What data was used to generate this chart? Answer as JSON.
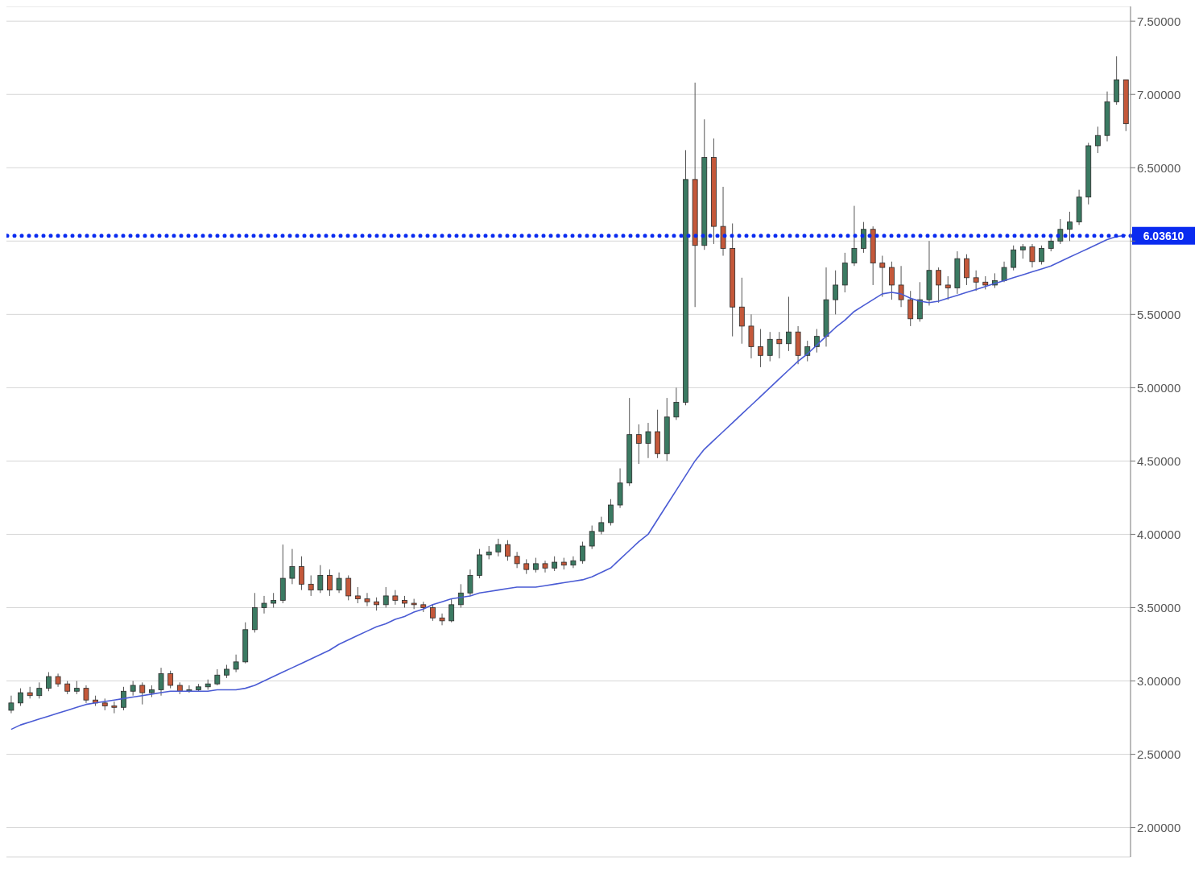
{
  "chart_data": {
    "type": "candlestick",
    "categories": [
      null,
      null,
      null,
      null,
      null,
      null,
      null,
      null,
      null,
      null,
      null,
      null,
      null,
      null,
      null,
      null,
      null,
      null,
      null,
      null,
      null,
      null,
      null,
      null,
      null,
      null,
      null,
      null,
      null,
      null,
      null,
      null,
      null,
      null,
      null,
      null,
      null,
      null,
      null,
      null,
      null,
      null,
      null,
      null,
      null,
      null,
      null,
      null,
      null,
      null,
      null,
      null,
      null,
      null,
      null,
      null,
      null,
      null,
      null,
      null,
      null,
      null,
      null,
      null,
      null,
      null,
      null,
      null,
      null,
      null,
      null,
      null,
      null,
      null,
      null,
      null,
      null,
      null,
      null,
      null,
      null,
      null,
      null,
      null,
      null,
      null,
      null,
      null,
      null,
      null,
      null,
      null,
      null,
      null,
      null,
      null,
      null,
      null,
      null,
      null,
      null,
      null,
      null,
      null,
      null,
      null,
      null,
      null,
      null,
      null,
      null,
      null,
      null,
      null,
      null,
      null,
      null,
      null,
      null,
      null
    ],
    "series": [
      {
        "colors": [
          "#3b7a62",
          "#3b7a62",
          "#c4583a",
          "#3b7a62",
          "#3b7a62",
          "#c4583a",
          "#c4583a",
          "#3b7a62",
          "#c4583a",
          "#c4583a",
          "#c4583a",
          "#c4583a",
          "#3b7a62",
          "#3b7a62",
          "#c4583a",
          "#3b7a62",
          "#3b7a62",
          "#c4583a",
          "#c4583a",
          "#3b7a62",
          "#3b7a62",
          "#3b7a62",
          "#3b7a62",
          "#3b7a62",
          "#3b7a62",
          "#3b7a62",
          "#3b7a62",
          "#3b7a62",
          "#3b7a62",
          "#3b7a62",
          "#3b7a62",
          "#c4583a",
          "#c4583a",
          "#3b7a62",
          "#c4583a",
          "#3b7a62",
          "#c4583a",
          "#c4583a",
          "#c4583a",
          "#c4583a",
          "#3b7a62",
          "#c4583a",
          "#c4583a",
          "#c4583a",
          "#c4583a",
          "#c4583a",
          "#c4583a",
          "#3b7a62",
          "#3b7a62",
          "#3b7a62",
          "#3b7a62",
          "#3b7a62",
          "#3b7a62",
          "#c4583a",
          "#c4583a",
          "#c4583a",
          "#3b7a62",
          "#c4583a",
          "#3b7a62",
          "#c4583a",
          "#3b7a62",
          "#3b7a62",
          "#3b7a62",
          "#3b7a62",
          "#3b7a62",
          "#3b7a62",
          "#3b7a62",
          "#c4583a",
          "#3b7a62",
          "#c4583a",
          "#3b7a62",
          "#3b7a62",
          "#3b7a62",
          "#c4583a",
          "#3b7a62",
          "#c4583a",
          "#c4583a",
          "#c4583a",
          "#c4583a",
          "#c4583a",
          "#c4583a",
          "#3b7a62",
          "#c4583a",
          "#3b7a62",
          "#c4583a",
          "#3b7a62",
          "#3b7a62",
          "#3b7a62",
          "#3b7a62",
          "#3b7a62",
          "#3b7a62",
          "#3b7a62",
          "#c4583a",
          "#c4583a",
          "#c4583a",
          "#c4583a",
          "#c4583a",
          "#3b7a62",
          "#3b7a62",
          "#c4583a",
          "#c4583a",
          "#3b7a62",
          "#c4583a",
          "#c4583a",
          "#c4583a",
          "#3b7a62",
          "#3b7a62",
          "#3b7a62",
          "#3b7a62",
          "#c4583a",
          "#3b7a62",
          "#3b7a62",
          "#3b7a62",
          "#3b7a62",
          "#3b7a62",
          "#3b7a62",
          "#3b7a62",
          "#3b7a62",
          "#3b7a62",
          "#c4583a"
        ],
        "ohlc": [
          [
            2.8,
            2.9,
            2.78,
            2.85
          ],
          [
            2.85,
            2.95,
            2.83,
            2.92
          ],
          [
            2.92,
            2.96,
            2.88,
            2.9
          ],
          [
            2.9,
            2.99,
            2.88,
            2.95
          ],
          [
            2.95,
            3.06,
            2.93,
            3.03
          ],
          [
            3.03,
            3.05,
            2.96,
            2.98
          ],
          [
            2.98,
            3.0,
            2.91,
            2.93
          ],
          [
            2.93,
            3.0,
            2.91,
            2.95
          ],
          [
            2.95,
            2.97,
            2.85,
            2.87
          ],
          [
            2.87,
            2.9,
            2.83,
            2.85
          ],
          [
            2.85,
            2.88,
            2.8,
            2.83
          ],
          [
            2.83,
            2.86,
            2.78,
            2.82
          ],
          [
            2.82,
            2.96,
            2.8,
            2.93
          ],
          [
            2.93,
            3.0,
            2.9,
            2.97
          ],
          [
            2.97,
            2.99,
            2.84,
            2.92
          ],
          [
            2.92,
            2.97,
            2.89,
            2.94
          ],
          [
            2.94,
            3.09,
            2.9,
            3.05
          ],
          [
            3.05,
            3.07,
            2.95,
            2.97
          ],
          [
            2.97,
            2.99,
            2.91,
            2.93
          ],
          [
            2.93,
            2.97,
            2.92,
            2.94
          ],
          [
            2.94,
            2.98,
            2.93,
            2.96
          ],
          [
            2.96,
            3.01,
            2.94,
            2.98
          ],
          [
            2.98,
            3.08,
            2.97,
            3.04
          ],
          [
            3.04,
            3.11,
            3.02,
            3.08
          ],
          [
            3.08,
            3.18,
            3.06,
            3.13
          ],
          [
            3.13,
            3.4,
            3.12,
            3.35
          ],
          [
            3.35,
            3.6,
            3.33,
            3.5
          ],
          [
            3.5,
            3.58,
            3.46,
            3.53
          ],
          [
            3.53,
            3.6,
            3.5,
            3.55
          ],
          [
            3.55,
            3.93,
            3.53,
            3.7
          ],
          [
            3.7,
            3.9,
            3.66,
            3.78
          ],
          [
            3.78,
            3.85,
            3.62,
            3.66
          ],
          [
            3.66,
            3.72,
            3.58,
            3.62
          ],
          [
            3.62,
            3.79,
            3.6,
            3.72
          ],
          [
            3.72,
            3.76,
            3.58,
            3.62
          ],
          [
            3.62,
            3.74,
            3.6,
            3.7
          ],
          [
            3.7,
            3.72,
            3.55,
            3.58
          ],
          [
            3.58,
            3.64,
            3.53,
            3.56
          ],
          [
            3.56,
            3.6,
            3.51,
            3.54
          ],
          [
            3.54,
            3.57,
            3.48,
            3.52
          ],
          [
            3.52,
            3.64,
            3.5,
            3.58
          ],
          [
            3.58,
            3.62,
            3.52,
            3.55
          ],
          [
            3.55,
            3.58,
            3.5,
            3.53
          ],
          [
            3.53,
            3.56,
            3.49,
            3.52
          ],
          [
            3.52,
            3.54,
            3.47,
            3.5
          ],
          [
            3.5,
            3.52,
            3.41,
            3.43
          ],
          [
            3.43,
            3.46,
            3.38,
            3.41
          ],
          [
            3.41,
            3.56,
            3.4,
            3.52
          ],
          [
            3.52,
            3.66,
            3.5,
            3.6
          ],
          [
            3.6,
            3.76,
            3.58,
            3.72
          ],
          [
            3.72,
            3.9,
            3.7,
            3.86
          ],
          [
            3.86,
            3.92,
            3.83,
            3.88
          ],
          [
            3.88,
            3.97,
            3.85,
            3.93
          ],
          [
            3.93,
            3.96,
            3.82,
            3.85
          ],
          [
            3.85,
            3.88,
            3.77,
            3.8
          ],
          [
            3.8,
            3.83,
            3.73,
            3.76
          ],
          [
            3.76,
            3.84,
            3.74,
            3.8
          ],
          [
            3.8,
            3.82,
            3.74,
            3.77
          ],
          [
            3.77,
            3.85,
            3.75,
            3.81
          ],
          [
            3.81,
            3.84,
            3.76,
            3.79
          ],
          [
            3.79,
            3.85,
            3.77,
            3.82
          ],
          [
            3.82,
            3.95,
            3.8,
            3.92
          ],
          [
            3.92,
            4.06,
            3.9,
            4.02
          ],
          [
            4.02,
            4.12,
            4.0,
            4.08
          ],
          [
            4.08,
            4.24,
            4.06,
            4.2
          ],
          [
            4.2,
            4.45,
            4.18,
            4.35
          ],
          [
            4.35,
            4.93,
            4.33,
            4.68
          ],
          [
            4.68,
            4.75,
            4.48,
            4.62
          ],
          [
            4.62,
            4.76,
            4.52,
            4.7
          ],
          [
            4.7,
            4.85,
            4.52,
            4.55
          ],
          [
            4.55,
            4.93,
            4.5,
            4.8
          ],
          [
            4.8,
            5.0,
            4.78,
            4.9
          ],
          [
            4.9,
            6.62,
            4.88,
            6.42
          ],
          [
            6.42,
            7.08,
            5.55,
            5.97
          ],
          [
            5.97,
            6.83,
            5.94,
            6.57
          ],
          [
            6.57,
            6.7,
            5.98,
            6.1
          ],
          [
            6.1,
            6.37,
            5.9,
            5.95
          ],
          [
            5.95,
            6.12,
            5.35,
            5.55
          ],
          [
            5.55,
            5.75,
            5.3,
            5.42
          ],
          [
            5.42,
            5.5,
            5.2,
            5.28
          ],
          [
            5.28,
            5.4,
            5.14,
            5.22
          ],
          [
            5.22,
            5.38,
            5.18,
            5.33
          ],
          [
            5.33,
            5.38,
            5.2,
            5.3
          ],
          [
            5.3,
            5.62,
            5.25,
            5.38
          ],
          [
            5.38,
            5.42,
            5.16,
            5.22
          ],
          [
            5.22,
            5.32,
            5.18,
            5.28
          ],
          [
            5.28,
            5.4,
            5.24,
            5.35
          ],
          [
            5.35,
            5.82,
            5.28,
            5.6
          ],
          [
            5.6,
            5.8,
            5.5,
            5.7
          ],
          [
            5.7,
            5.92,
            5.65,
            5.85
          ],
          [
            5.85,
            6.24,
            5.83,
            5.95
          ],
          [
            5.95,
            6.13,
            5.92,
            6.08
          ],
          [
            6.08,
            6.1,
            5.7,
            5.85
          ],
          [
            5.85,
            5.9,
            5.62,
            5.82
          ],
          [
            5.82,
            5.86,
            5.6,
            5.7
          ],
          [
            5.7,
            5.83,
            5.55,
            5.6
          ],
          [
            5.6,
            5.66,
            5.42,
            5.47
          ],
          [
            5.47,
            5.72,
            5.45,
            5.6
          ],
          [
            5.6,
            6.0,
            5.56,
            5.8
          ],
          [
            5.8,
            5.82,
            5.58,
            5.7
          ],
          [
            5.7,
            5.76,
            5.6,
            5.68
          ],
          [
            5.68,
            5.93,
            5.64,
            5.88
          ],
          [
            5.88,
            5.91,
            5.7,
            5.75
          ],
          [
            5.75,
            5.8,
            5.66,
            5.72
          ],
          [
            5.72,
            5.76,
            5.67,
            5.7
          ],
          [
            5.7,
            5.78,
            5.68,
            5.73
          ],
          [
            5.73,
            5.86,
            5.72,
            5.82
          ],
          [
            5.82,
            5.97,
            5.8,
            5.94
          ],
          [
            5.94,
            5.98,
            5.88,
            5.96
          ],
          [
            5.96,
            5.98,
            5.82,
            5.86
          ],
          [
            5.86,
            5.97,
            5.84,
            5.95
          ],
          [
            5.95,
            6.04,
            5.93,
            6.0
          ],
          [
            6.0,
            6.15,
            5.98,
            6.08
          ],
          [
            6.08,
            6.2,
            6.0,
            6.13
          ],
          [
            6.13,
            6.35,
            6.11,
            6.3
          ],
          [
            6.3,
            6.67,
            6.25,
            6.65
          ],
          [
            6.65,
            6.78,
            6.6,
            6.72
          ],
          [
            6.72,
            7.02,
            6.68,
            6.95
          ],
          [
            6.95,
            7.26,
            6.93,
            7.1
          ],
          [
            7.1,
            7.1,
            6.75,
            6.8
          ]
        ]
      },
      {
        "type": "line",
        "color": "#4a5bd4",
        "values": [
          2.67,
          2.7,
          2.72,
          2.74,
          2.76,
          2.78,
          2.8,
          2.82,
          2.84,
          2.85,
          2.86,
          2.87,
          2.88,
          2.89,
          2.9,
          2.91,
          2.92,
          2.93,
          2.93,
          2.93,
          2.93,
          2.93,
          2.94,
          2.94,
          2.94,
          2.95,
          2.97,
          3.0,
          3.03,
          3.06,
          3.09,
          3.12,
          3.15,
          3.18,
          3.21,
          3.25,
          3.28,
          3.31,
          3.34,
          3.37,
          3.39,
          3.42,
          3.44,
          3.47,
          3.49,
          3.52,
          3.54,
          3.56,
          3.57,
          3.58,
          3.6,
          3.61,
          3.62,
          3.63,
          3.64,
          3.64,
          3.64,
          3.65,
          3.66,
          3.67,
          3.68,
          3.69,
          3.71,
          3.74,
          3.77,
          3.83,
          3.89,
          3.95,
          4.0,
          4.1,
          4.2,
          4.3,
          4.4,
          4.5,
          4.58,
          4.64,
          4.7,
          4.76,
          4.82,
          4.88,
          4.94,
          5.0,
          5.06,
          5.12,
          5.18,
          5.23,
          5.29,
          5.35,
          5.41,
          5.46,
          5.52,
          5.56,
          5.6,
          5.64,
          5.65,
          5.64,
          5.61,
          5.59,
          5.58,
          5.59,
          5.61,
          5.63,
          5.65,
          5.67,
          5.69,
          5.71,
          5.73,
          5.75,
          5.77,
          5.79,
          5.81,
          5.83,
          5.86,
          5.89,
          5.92,
          5.95,
          5.98,
          6.01,
          6.03,
          6.04
        ]
      }
    ],
    "ylim": [
      1.8,
      7.6
    ],
    "yticks": [
      {
        "value": 2,
        "label": "2.00000"
      },
      {
        "value": 2.5,
        "label": "2.50000"
      },
      {
        "value": 3,
        "label": "3.00000"
      },
      {
        "value": 3.5,
        "label": "3.50000"
      },
      {
        "value": 4,
        "label": "4.00000"
      },
      {
        "value": 4.5,
        "label": "4.50000"
      },
      {
        "value": 5,
        "label": "5.00000"
      },
      {
        "value": 5.5,
        "label": "5.50000"
      },
      {
        "value": 6,
        "label": null
      },
      {
        "value": 6.5,
        "label": "6.50000"
      },
      {
        "value": 7,
        "label": "7.00000"
      },
      {
        "value": 7.5,
        "label": "7.50000"
      }
    ],
    "ref_lines": [
      {
        "axis": "y",
        "value": 6.0361,
        "label": "6.03610",
        "color": "#0a2bf0",
        "line_style": "dotted"
      }
    ],
    "grid": "y",
    "legend": false,
    "tick_labels": "y"
  }
}
